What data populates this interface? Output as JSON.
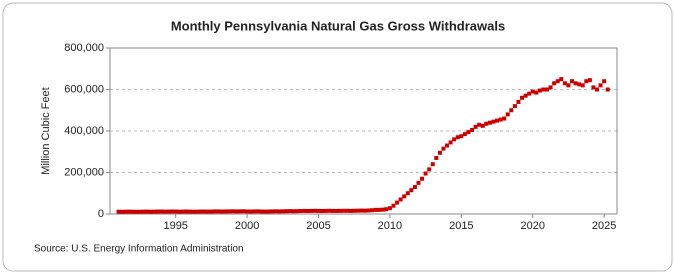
{
  "chart_data": {
    "type": "scatter",
    "title": "Monthly Pennsylvania Natural Gas Gross Withdrawals",
    "y_label": "Million Cubic Feet",
    "source": "Source: U.S. Energy Information Administration",
    "color": "#cc0000",
    "grid": true,
    "xlim": [
      1990.4,
      2025.9
    ],
    "xticks": [
      1995,
      2000,
      2005,
      2010,
      2015,
      2020,
      2025
    ],
    "ylim": [
      0,
      800000
    ],
    "yticks": [
      0,
      {
        "value": 200000,
        "label": "200,000"
      },
      {
        "value": 400000,
        "label": "400,000"
      },
      {
        "value": 600000,
        "label": "600,000"
      },
      {
        "value": 800000,
        "label": "800,000"
      }
    ],
    "x": [
      1991,
      1991.25,
      1991.5,
      1991.75,
      1992,
      1992.25,
      1992.5,
      1992.75,
      1993,
      1993.25,
      1993.5,
      1993.75,
      1994,
      1994.25,
      1994.5,
      1994.75,
      1995,
      1995.25,
      1995.5,
      1995.75,
      1996,
      1996.25,
      1996.5,
      1996.75,
      1997,
      1997.25,
      1997.5,
      1997.75,
      1998,
      1998.25,
      1998.5,
      1998.75,
      1999,
      1999.25,
      1999.5,
      1999.75,
      2000,
      2000.25,
      2000.5,
      2000.75,
      2001,
      2001.25,
      2001.5,
      2001.75,
      2002,
      2002.25,
      2002.5,
      2002.75,
      2003,
      2003.25,
      2003.5,
      2003.75,
      2004,
      2004.25,
      2004.5,
      2004.75,
      2005,
      2005.25,
      2005.5,
      2005.75,
      2006,
      2006.25,
      2006.5,
      2006.75,
      2007,
      2007.25,
      2007.5,
      2007.75,
      2008,
      2008.25,
      2008.5,
      2008.75,
      2009,
      2009.25,
      2009.5,
      2009.75,
      2010,
      2010.25,
      2010.5,
      2010.75,
      2011,
      2011.25,
      2011.5,
      2011.75,
      2012,
      2012.25,
      2012.5,
      2012.75,
      2013,
      2013.25,
      2013.5,
      2013.75,
      2014,
      2014.25,
      2014.5,
      2014.75,
      2015,
      2015.25,
      2015.5,
      2015.75,
      2016,
      2016.25,
      2016.5,
      2016.75,
      2017,
      2017.25,
      2017.5,
      2017.75,
      2018,
      2018.25,
      2018.5,
      2018.75,
      2019,
      2019.25,
      2019.5,
      2019.75,
      2020,
      2020.25,
      2020.5,
      2020.75,
      2021,
      2021.25,
      2021.5,
      2021.75,
      2022,
      2022.25,
      2022.5,
      2022.75,
      2023,
      2023.25,
      2023.5,
      2023.75,
      2024,
      2024.25,
      2024.5,
      2024.75,
      2025,
      2025.25
    ],
    "values": [
      11000,
      10500,
      11000,
      11500,
      11000,
      10500,
      10800,
      11200,
      11500,
      11000,
      11200,
      11800,
      12000,
      11500,
      11800,
      12200,
      12000,
      11000,
      11500,
      12000,
      11500,
      11000,
      11200,
      11800,
      12000,
      11500,
      11800,
      12500,
      12500,
      12000,
      12300,
      12800,
      13000,
      12500,
      12800,
      13200,
      12500,
      12000,
      12400,
      12800,
      12000,
      11500,
      12000,
      12500,
      13000,
      12500,
      13000,
      13500,
      14000,
      13500,
      14000,
      14500,
      15000,
      14500,
      15000,
      15500,
      15000,
      14500,
      15000,
      15500,
      15000,
      14800,
      15200,
      15600,
      15500,
      15000,
      15500,
      16000,
      16500,
      16000,
      17000,
      18000,
      20000,
      20000,
      21000,
      23000,
      28000,
      40000,
      55000,
      70000,
      85000,
      100000,
      115000,
      130000,
      150000,
      170000,
      195000,
      215000,
      240000,
      270000,
      295000,
      315000,
      330000,
      345000,
      360000,
      370000,
      375000,
      385000,
      395000,
      405000,
      420000,
      430000,
      425000,
      435000,
      440000,
      445000,
      450000,
      455000,
      460000,
      480000,
      500000,
      520000,
      540000,
      560000,
      570000,
      580000,
      590000,
      585000,
      595000,
      600000,
      600000,
      610000,
      630000,
      640000,
      650000,
      630000,
      620000,
      640000,
      630000,
      625000,
      620000,
      640000,
      645000,
      610000,
      600000,
      620000,
      640000,
      600000
    ]
  }
}
